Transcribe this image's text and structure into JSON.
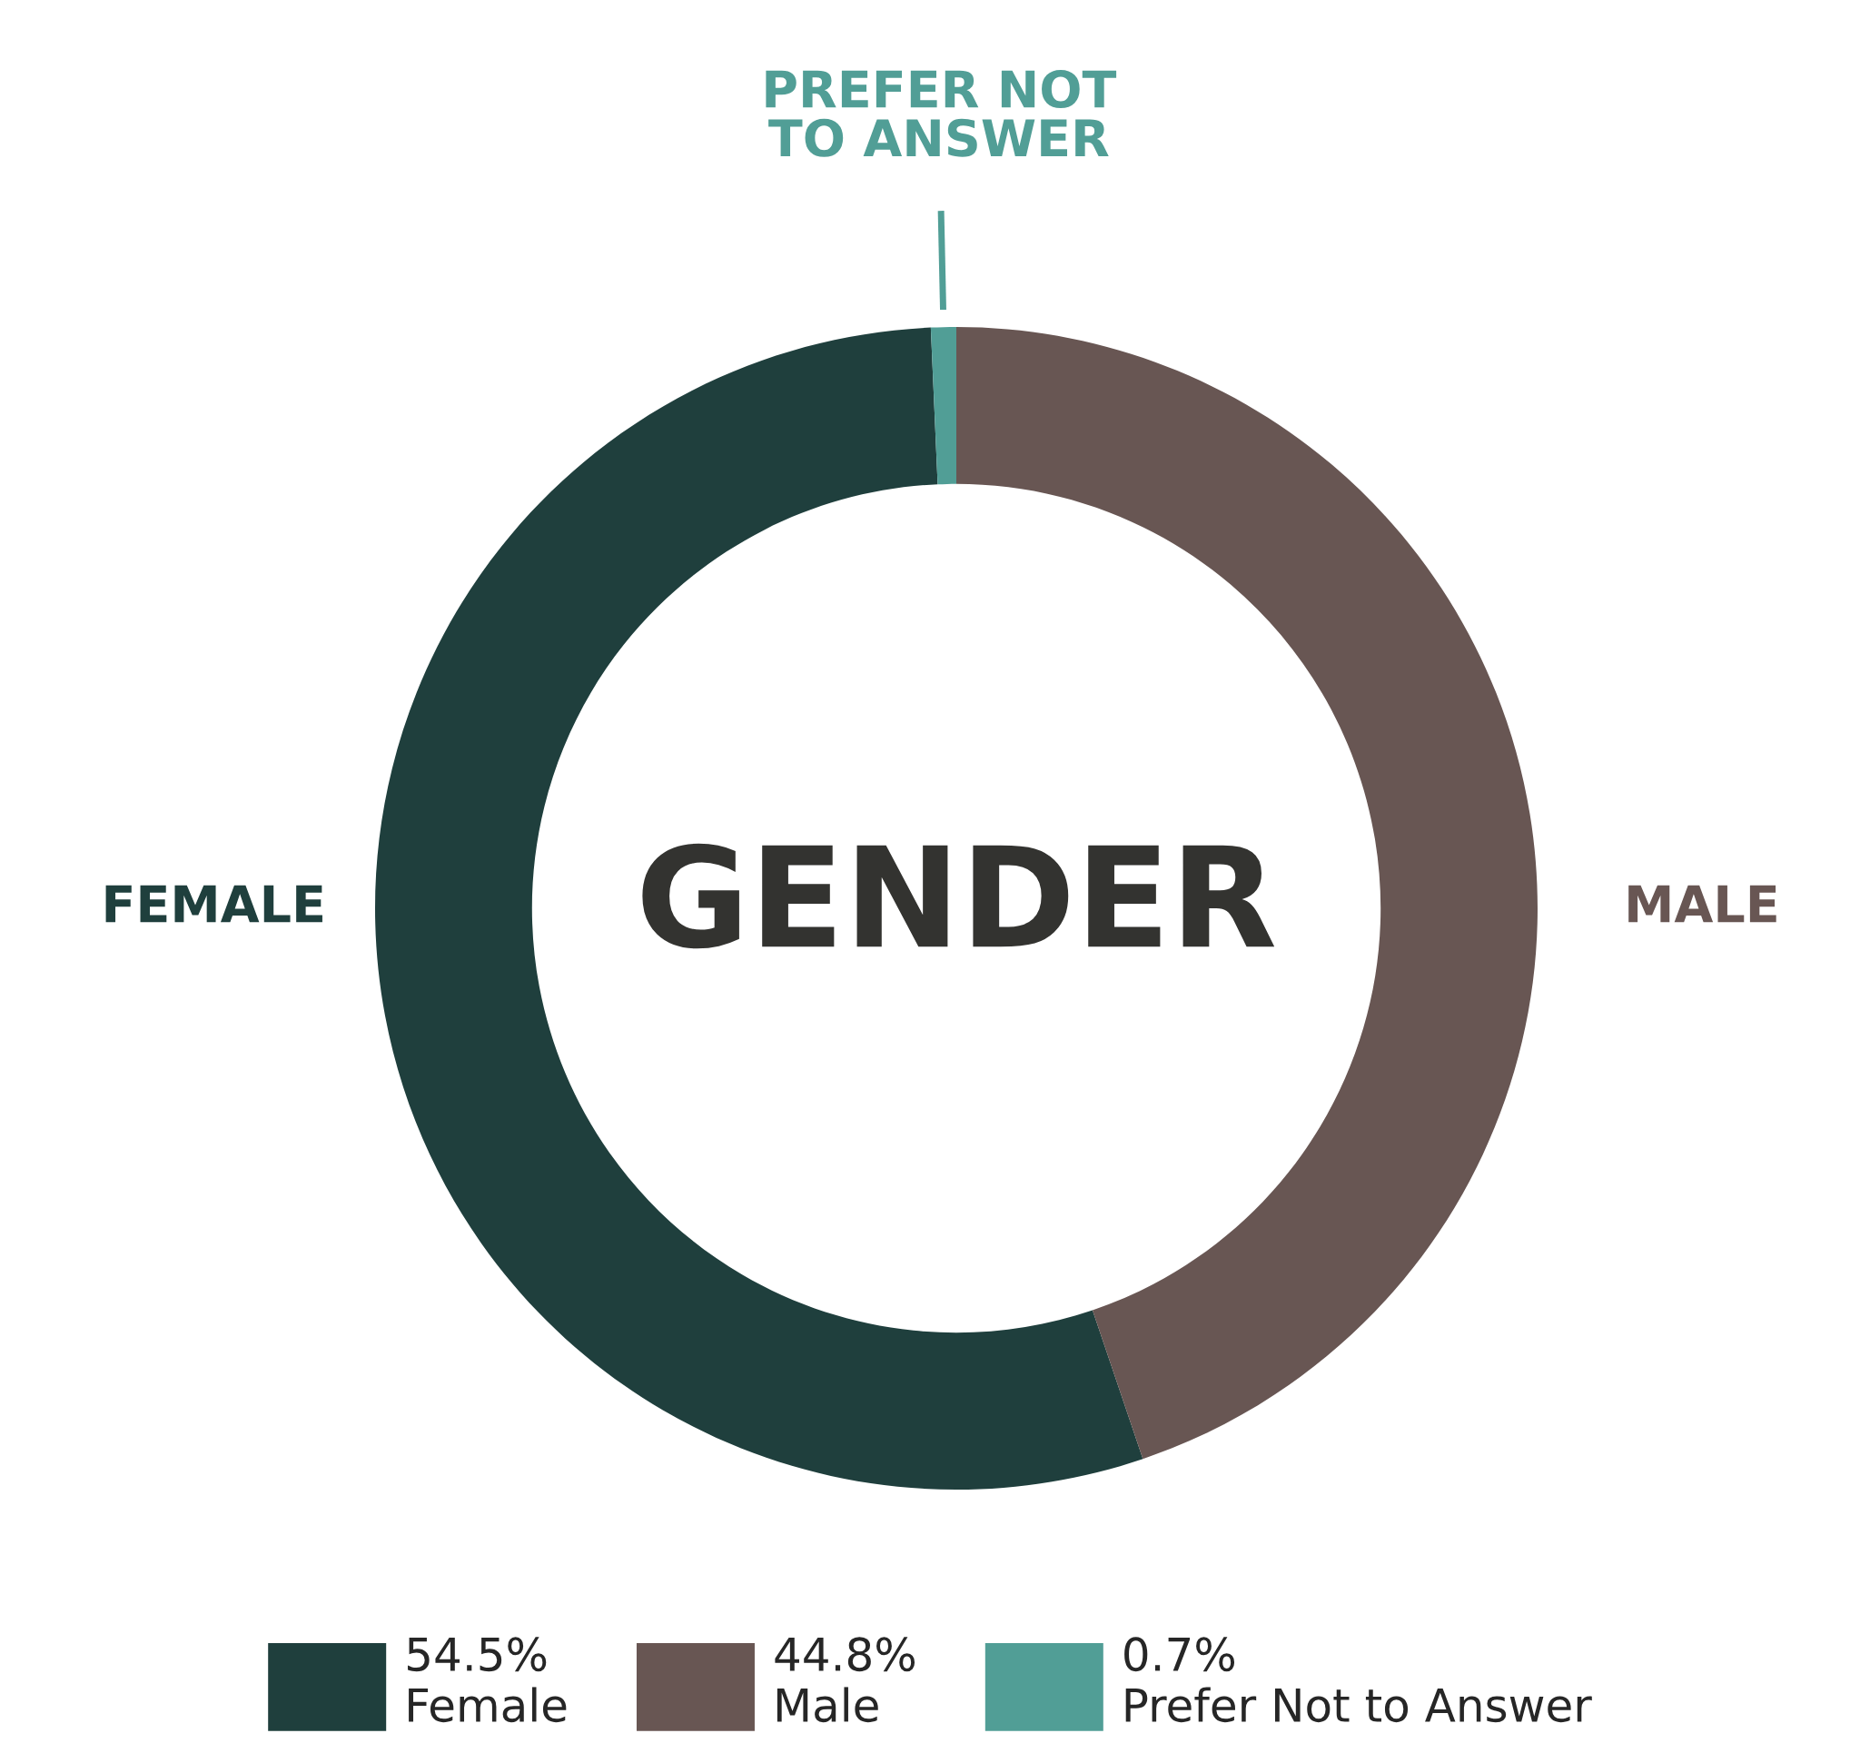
{
  "chart_data": {
    "type": "donut",
    "title": "GENDER",
    "categories": [
      "Female",
      "Male",
      "Prefer Not to Answer"
    ],
    "values": [
      54.5,
      44.8,
      0.7
    ],
    "value_labels": [
      "54.5%",
      "44.8%",
      "0.7%"
    ],
    "colors": [
      "#1f3f3d",
      "#685653",
      "#519e96"
    ],
    "annotations": [
      "FEMALE",
      "MALE",
      "PREFER NOT\nTO ANSWER"
    ],
    "legend": "bottom"
  }
}
